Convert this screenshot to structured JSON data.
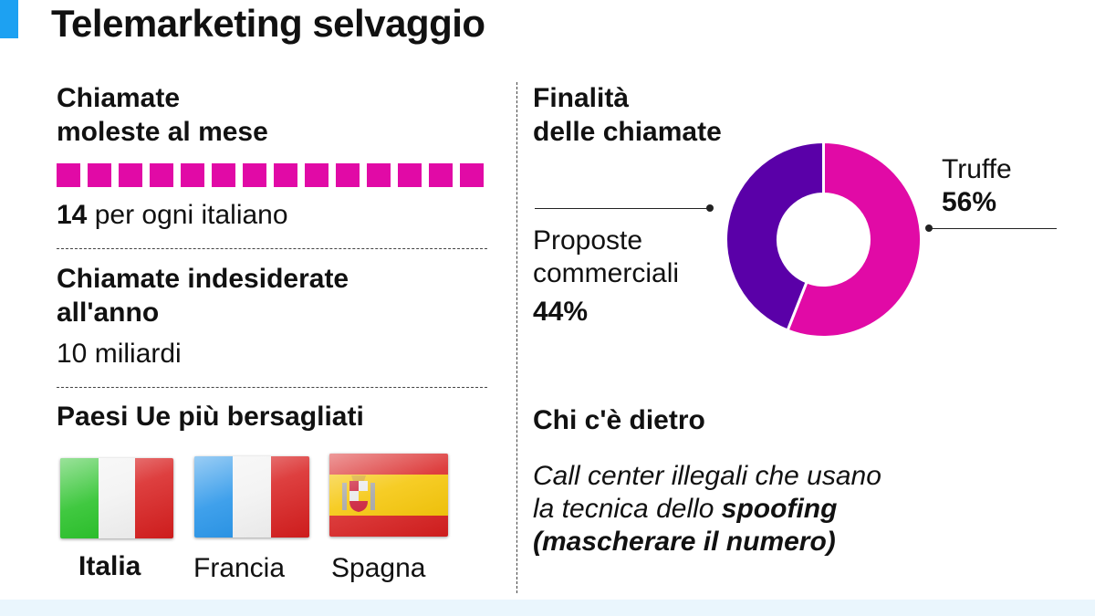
{
  "title": "Telemarketing selvaggio",
  "monthly": {
    "heading_line1": "Chiamate",
    "heading_line2": "moleste al mese",
    "value": "14",
    "unit": "per ogni italiano",
    "square_count": 14,
    "square_color": "#e10aa6"
  },
  "yearly": {
    "heading_line1": "Chiamate indesiderate",
    "heading_line2": "all'anno",
    "value": "10 miliardi"
  },
  "countries": {
    "heading": "Paesi Ue più bersagliati",
    "items": [
      {
        "name": "Italia",
        "flag": "italy-flag-icon"
      },
      {
        "name": "Francia",
        "flag": "france-flag-icon"
      },
      {
        "name": "Spagna",
        "flag": "spain-flag-icon"
      }
    ]
  },
  "chart_data": {
    "type": "pie",
    "title": "Finalità delle chiamate",
    "title_line1": "Finalità",
    "title_line2": "delle chiamate",
    "donut": true,
    "slices": [
      {
        "label": "Truffe",
        "value": 56,
        "value_label": "56%",
        "color": "#e10aa6"
      },
      {
        "label_line1": "Proposte",
        "label_line2": "commerciali",
        "label": "Proposte commerciali",
        "value": 44,
        "value_label": "44%",
        "color": "#5a00a8"
      }
    ]
  },
  "who": {
    "heading": "Chi c'è dietro",
    "line1": "Call center illegali che usano",
    "line2_prefix": "la tecnica dello ",
    "line2_bold": "spoofing",
    "line3": "(mascherare il numero)"
  }
}
